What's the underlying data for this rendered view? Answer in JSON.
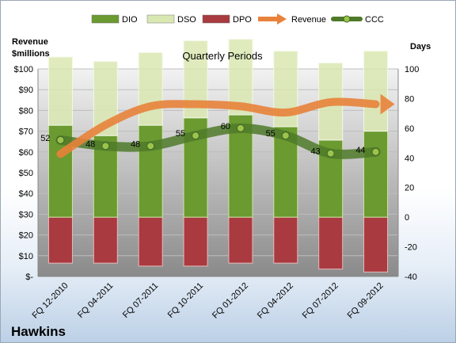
{
  "chart_data": {
    "type": "bar",
    "subtitle": "Quarterly Periods",
    "company": "Hawkins",
    "left_axis_title": [
      "Revenue",
      "$millions"
    ],
    "right_axis_title": "Days",
    "categories": [
      "FQ 12-2010",
      "FQ 04-2011",
      "FQ 07-2011",
      "FQ 10-2011",
      "FQ 01-2012",
      "FQ 04-2012",
      "FQ 07-2012",
      "FQ 09-2012"
    ],
    "left_ticks": [
      "$-",
      "$10",
      "$20",
      "$30",
      "$40",
      "$50",
      "$60",
      "$70",
      "$80",
      "$90",
      "$100"
    ],
    "right_ticks": [
      "-40",
      "-20",
      "0",
      "20",
      "40",
      "60",
      "80",
      "100"
    ],
    "ylim_left": [
      0,
      100
    ],
    "ylim_right": [
      -40,
      100
    ],
    "grid": true,
    "legend_position": "top",
    "series": [
      {
        "name": "DIO",
        "kind": "bar",
        "color": "#6a9a30",
        "values": [
          62,
          55,
          62,
          67,
          69,
          61,
          52,
          58
        ]
      },
      {
        "name": "DSO",
        "kind": "bar",
        "color": "#d9e8b2",
        "values": [
          46,
          50,
          49,
          52,
          51,
          51,
          52,
          54
        ]
      },
      {
        "name": "DPO",
        "kind": "bar",
        "color": "#a93a3f",
        "values": [
          -31,
          -31,
          -33,
          -33,
          -31,
          -31,
          -35,
          -37
        ]
      },
      {
        "name": "Revenue",
        "kind": "line",
        "axis": "left",
        "color": "#e8823a",
        "values": [
          59,
          73,
          82,
          83,
          82,
          79,
          84,
          83
        ]
      },
      {
        "name": "CCC",
        "kind": "line",
        "axis": "right",
        "color": "#4f7a2a",
        "values": [
          52,
          48,
          48,
          55,
          60,
          55,
          43,
          44
        ],
        "labels": [
          "52",
          "48",
          "48",
          "55",
          "60",
          "55",
          "43",
          "44"
        ]
      }
    ]
  }
}
